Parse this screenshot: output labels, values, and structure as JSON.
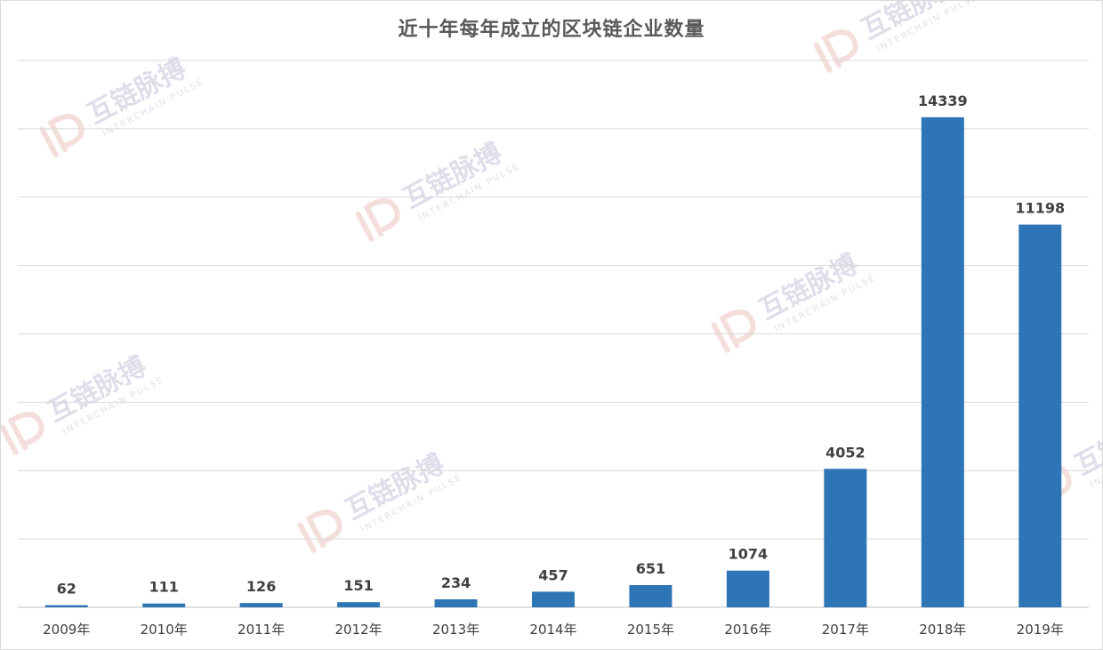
{
  "chart_data": {
    "type": "bar",
    "title": "近十年每年成立的区块链企业数量",
    "xlabel": "",
    "ylabel": "",
    "categories": [
      "2009年",
      "2010年",
      "2011年",
      "2012年",
      "2013年",
      "2014年",
      "2015年",
      "2016年",
      "2017年",
      "2018年",
      "2019年"
    ],
    "values": [
      62,
      111,
      126,
      151,
      234,
      457,
      651,
      1074,
      4052,
      14339,
      11198
    ],
    "ylim": [
      0,
      16000
    ],
    "grid": true,
    "legend": "none",
    "bar_color": "#2e75b6"
  },
  "watermark": {
    "brand_cn": "互链脉搏",
    "brand_en": "INTERCHAIN PULSE",
    "logo_letters": "iP"
  },
  "colors": {
    "gridline": "#d9d9d9",
    "title": "#595959",
    "label": "#404040"
  }
}
